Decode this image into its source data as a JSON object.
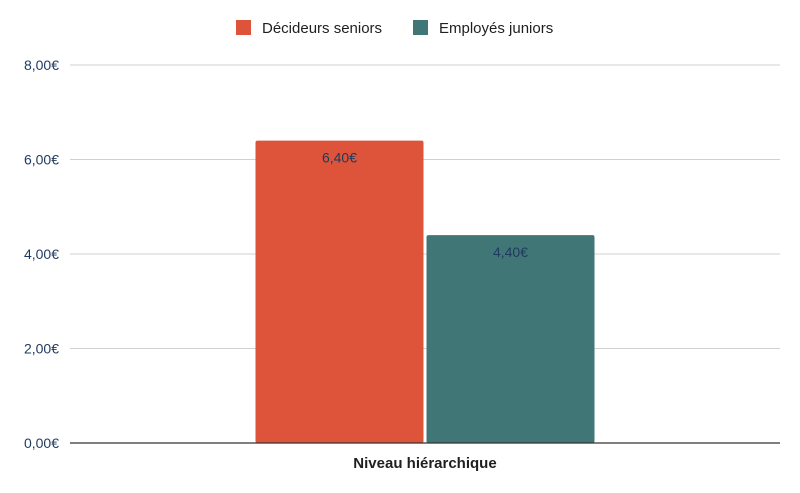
{
  "chart_data": {
    "type": "bar",
    "categories": [
      "Niveau hiérarchique"
    ],
    "series": [
      {
        "name": "Décideurs seniors",
        "values": [
          6.4
        ],
        "labels": [
          "6,40€"
        ],
        "color": "#dd543a"
      },
      {
        "name": "Employés juniors",
        "values": [
          4.4
        ],
        "labels": [
          "4,40€"
        ],
        "color": "#417676"
      }
    ],
    "ylim": [
      0,
      8
    ],
    "yticks": [
      0,
      2,
      4,
      6,
      8
    ],
    "ytick_labels": [
      "0,00€",
      "2,00€",
      "4,00€",
      "6,00€",
      "8,00€"
    ],
    "grid": true,
    "legend_position": "top-center",
    "colors": {
      "grid": "#d0d0d0",
      "axis": "#333333",
      "tick_text": "#1f3a5f"
    }
  }
}
